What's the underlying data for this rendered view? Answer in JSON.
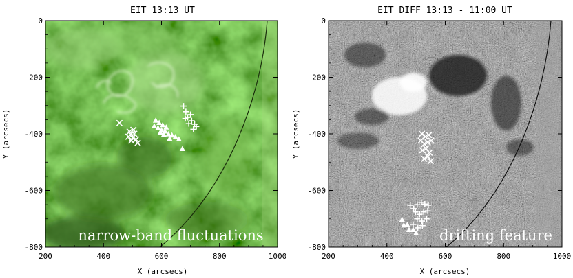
{
  "chart_data": [
    {
      "type": "scatter",
      "title": "EIT 13:13 UT",
      "xlabel": "X (arcsecs)",
      "ylabel": "Y (arcsecs)",
      "xlim": [
        200,
        1000
      ],
      "ylim": [
        -800,
        0
      ],
      "xticks": [
        "200",
        "400",
        "600",
        "800",
        "1000"
      ],
      "yticks": [
        "0",
        "-200",
        "-400",
        "-600",
        "-800"
      ],
      "annotation": "narrow-band fluctuations",
      "background": "green EUV image",
      "colors": {
        "bg_dark": "#2a5010",
        "bg_mid": "#4e8a26",
        "bg_bright": "#c8e8a8",
        "markers": "#ffffff"
      },
      "series": [
        {
          "marker": "x",
          "points": [
            [
              455,
              -362
            ],
            [
              490,
              -392
            ],
            [
              494,
              -402
            ],
            [
              500,
              -414
            ],
            [
              506,
              -400
            ],
            [
              512,
              -420
            ],
            [
              518,
              -432
            ],
            [
              503,
              -386
            ],
            [
              486,
              -410
            ],
            [
              496,
              -424
            ]
          ]
        },
        {
          "marker": "triangle",
          "points": [
            [
              580,
              -352
            ],
            [
              592,
              -360
            ],
            [
              604,
              -368
            ],
            [
              588,
              -378
            ],
            [
              600,
              -386
            ],
            [
              612,
              -390
            ],
            [
              624,
              -400
            ],
            [
              636,
              -404
            ],
            [
              648,
              -410
            ],
            [
              616,
              -376
            ],
            [
              596,
              -394
            ],
            [
              628,
              -416
            ],
            [
              575,
              -372
            ],
            [
              608,
              -402
            ],
            [
              660,
              -418
            ],
            [
              672,
              -452
            ]
          ]
        },
        {
          "marker": "+",
          "points": [
            [
              676,
              -302
            ],
            [
              684,
              -322
            ],
            [
              690,
              -342
            ],
            [
              700,
              -332
            ],
            [
              704,
              -354
            ],
            [
              714,
              -366
            ],
            [
              694,
              -364
            ],
            [
              682,
              -346
            ],
            [
              710,
              -384
            ],
            [
              720,
              -374
            ]
          ]
        }
      ]
    },
    {
      "type": "scatter",
      "title": "EIT DIFF 13:13 - 11:00 UT",
      "xlabel": "X (arcsecs)",
      "ylabel": "Y (arcsecs)",
      "xlim": [
        200,
        1000
      ],
      "ylim": [
        -800,
        0
      ],
      "xticks": [
        "200",
        "400",
        "600",
        "800",
        "1000"
      ],
      "yticks": [
        "0",
        "-200",
        "-400",
        "-600",
        "-800"
      ],
      "annotation": "drifting feature",
      "background": "grey difference image",
      "colors": {
        "bg_mid": "#8c8c8c",
        "bright": "#ffffff",
        "dark": "#1a1a1a",
        "markers": "#ffffff"
      },
      "series": [
        {
          "marker": "x",
          "points": [
            [
              520,
              -400
            ],
            [
              532,
              -410
            ],
            [
              544,
              -404
            ],
            [
              516,
              -424
            ],
            [
              528,
              -436
            ],
            [
              540,
              -430
            ],
            [
              552,
              -424
            ],
            [
              534,
              -452
            ],
            [
              546,
              -466
            ],
            [
              522,
              -458
            ],
            [
              540,
              -480
            ],
            [
              550,
              -496
            ],
            [
              528,
              -488
            ]
          ]
        },
        {
          "marker": "+",
          "points": [
            [
              480,
              -652
            ],
            [
              492,
              -664
            ],
            [
              504,
              -650
            ],
            [
              518,
              -642
            ],
            [
              530,
              -648
            ],
            [
              542,
              -652
            ],
            [
              498,
              -676
            ],
            [
              512,
              -684
            ],
            [
              526,
              -676
            ],
            [
              540,
              -672
            ],
            [
              504,
              -700
            ],
            [
              520,
              -708
            ],
            [
              490,
              -720
            ],
            [
              506,
              -732
            ],
            [
              522,
              -724
            ],
            [
              536,
              -700
            ]
          ]
        },
        {
          "marker": "triangle",
          "points": [
            [
              452,
              -702
            ],
            [
              458,
              -722
            ],
            [
              470,
              -720
            ],
            [
              476,
              -738
            ],
            [
              490,
              -738
            ],
            [
              500,
              -750
            ]
          ]
        }
      ]
    }
  ]
}
